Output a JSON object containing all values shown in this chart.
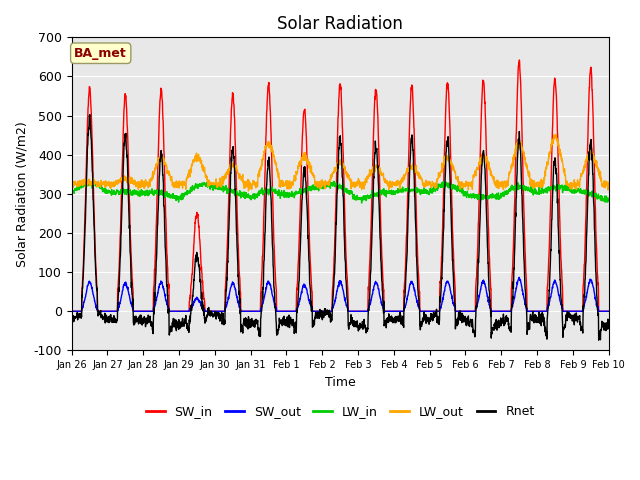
{
  "title": "Solar Radiation",
  "xlabel": "Time",
  "ylabel": "Solar Radiation (W/m2)",
  "ylim": [
    -100,
    700
  ],
  "yticks": [
    -100,
    0,
    100,
    200,
    300,
    400,
    500,
    600,
    700
  ],
  "xtick_labels": [
    "Jan 26",
    "Jan 27",
    "Jan 28",
    "Jan 29",
    "Jan 30",
    "Jan 31",
    "Feb 1",
    "Feb 2",
    "Feb 3",
    "Feb 4",
    "Feb 5",
    "Feb 6",
    "Feb 7",
    "Feb 8",
    "Feb 9",
    "Feb 10"
  ],
  "series": {
    "SW_in": {
      "color": "#FF0000",
      "lw": 1.0
    },
    "SW_out": {
      "color": "#0000FF",
      "lw": 1.0
    },
    "LW_in": {
      "color": "#00CC00",
      "lw": 1.0
    },
    "LW_out": {
      "color": "#FFA500",
      "lw": 1.0
    },
    "Rnet": {
      "color": "#000000",
      "lw": 1.0
    }
  },
  "annotation_text": "BA_met",
  "annotation_color": "#8B0000",
  "annotation_bg": "#FFFFCC",
  "plot_bg": "#E8E8E8",
  "fig_bg": "#FFFFFF",
  "n_days": 15,
  "sw_in_peaks": [
    570,
    550,
    565,
    250,
    555,
    580,
    520,
    580,
    570,
    575,
    585,
    590,
    635,
    595,
    620
  ],
  "lw_out_day_peaks": [
    330,
    340,
    390,
    395,
    370,
    430,
    395,
    380,
    370,
    370,
    390,
    395,
    430,
    445,
    405
  ],
  "lw_in_base": 300,
  "sw_out_ratio": 0.13
}
